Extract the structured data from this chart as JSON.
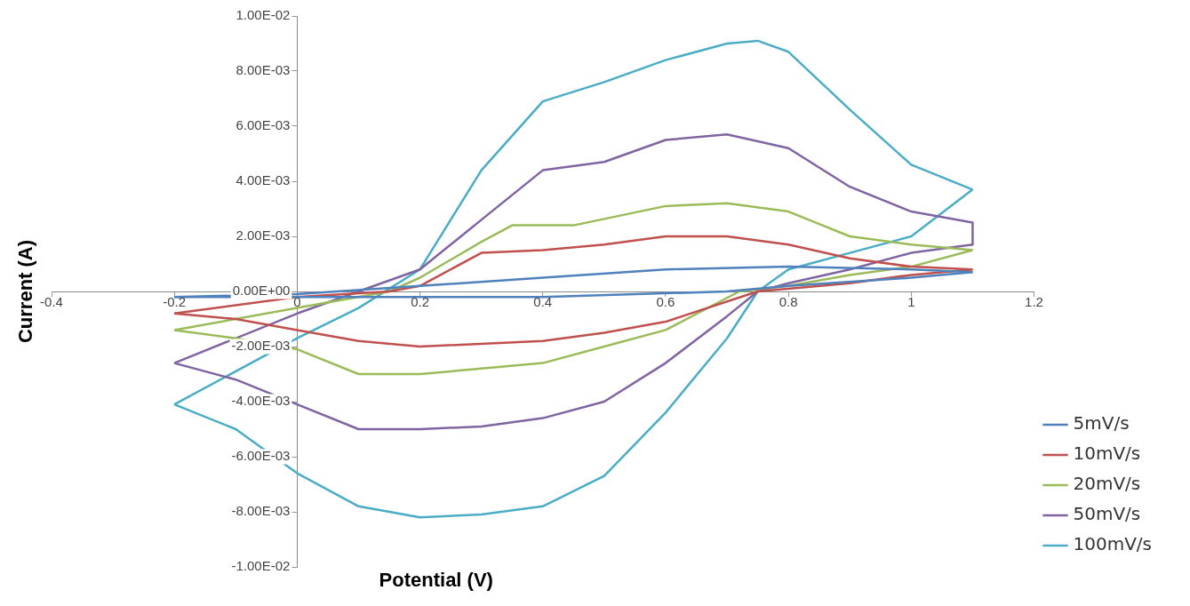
{
  "chart_data": {
    "type": "line",
    "xlabel": "Potential (V)",
    "ylabel": "Current (A)",
    "xlim": [
      -0.4,
      1.2
    ],
    "xticks": [
      -0.4,
      -0.2,
      0,
      0.2,
      0.4,
      0.6,
      0.8,
      1,
      1.2
    ],
    "ylim": [
      -0.01,
      0.01
    ],
    "yticks": [
      {
        "value": -0.01,
        "label": "-1.00E-02"
      },
      {
        "value": -0.008,
        "label": "-8.00E-03"
      },
      {
        "value": -0.006,
        "label": "-6.00E-03"
      },
      {
        "value": -0.004,
        "label": "-4.00E-03"
      },
      {
        "value": -0.002,
        "label": "-2.00E-03"
      },
      {
        "value": 0,
        "label": "0.00E+00"
      },
      {
        "value": 0.002,
        "label": "2.00E-03"
      },
      {
        "value": 0.004,
        "label": "4.00E-03"
      },
      {
        "value": 0.006,
        "label": "6.00E-03"
      },
      {
        "value": 0.008,
        "label": "8.00E-03"
      },
      {
        "value": 0.01,
        "label": "1.00E-02"
      }
    ],
    "grid": false,
    "legend": "bottom right",
    "marker": "none",
    "line_style": "solid",
    "series": [
      {
        "name": "5mV/s",
        "color": "#4f81bd",
        "x": [
          -0.2,
          0,
          0.2,
          0.4,
          0.6,
          0.8,
          1.0,
          1.1,
          1.0,
          0.8,
          0.7,
          0.4,
          0.2,
          0,
          -0.2
        ],
        "values": [
          -0.0002,
          -0.0001,
          0.0002,
          0.0005,
          0.0008,
          0.0009,
          0.0008,
          0.0007,
          0.0005,
          0.0002,
          0,
          -0.0002,
          -0.0002,
          -0.0002,
          -0.0002
        ]
      },
      {
        "name": "10mV/s",
        "color": "#c0504d",
        "x": [
          -0.2,
          0,
          0.15,
          0.2,
          0.3,
          0.4,
          0.5,
          0.6,
          0.7,
          0.8,
          0.9,
          1.0,
          1.1,
          1.0,
          0.9,
          0.75,
          0.6,
          0.5,
          0.4,
          0.2,
          0.1,
          0,
          -0.1,
          -0.2
        ],
        "values": [
          -0.0008,
          -0.0002,
          0,
          0.0002,
          0.0014,
          0.0015,
          0.0017,
          0.002,
          0.002,
          0.0017,
          0.0012,
          0.0009,
          0.0008,
          0.0006,
          0.0003,
          0,
          -0.0011,
          -0.0015,
          -0.0018,
          -0.002,
          -0.0018,
          -0.0014,
          -0.001,
          -0.0008
        ]
      },
      {
        "name": "20mV/s",
        "color": "#9bbb59",
        "x": [
          -0.2,
          0,
          0.15,
          0.2,
          0.3,
          0.35,
          0.45,
          0.6,
          0.7,
          0.8,
          0.9,
          1.0,
          1.1,
          1.0,
          0.9,
          0.8,
          0.72,
          0.6,
          0.5,
          0.4,
          0.3,
          0.2,
          0.1,
          0,
          -0.1,
          -0.2
        ],
        "values": [
          -0.0014,
          -0.0006,
          0,
          0.0005,
          0.0018,
          0.0024,
          0.0024,
          0.0031,
          0.0032,
          0.0029,
          0.002,
          0.0017,
          0.0015,
          0.0009,
          0.0006,
          0.0002,
          0,
          -0.0014,
          -0.002,
          -0.0026,
          -0.0028,
          -0.003,
          -0.003,
          -0.0021,
          -0.0017,
          -0.0014
        ]
      },
      {
        "name": "50mV/s",
        "color": "#8064a2",
        "x": [
          -0.2,
          0,
          0.1,
          0.2,
          0.3,
          0.4,
          0.5,
          0.6,
          0.7,
          0.8,
          0.9,
          1.0,
          1.1,
          1.1,
          1.0,
          0.9,
          0.8,
          0.75,
          0.7,
          0.6,
          0.5,
          0.4,
          0.3,
          0.2,
          0.1,
          0,
          -0.1,
          -0.2
        ],
        "values": [
          -0.0026,
          -0.0008,
          0,
          0.0008,
          0.0026,
          0.0044,
          0.0047,
          0.0055,
          0.0057,
          0.0052,
          0.0038,
          0.0029,
          0.0025,
          0.0017,
          0.0014,
          0.0008,
          0.0003,
          0,
          -0.0009,
          -0.0026,
          -0.004,
          -0.0046,
          -0.0049,
          -0.005,
          -0.005,
          -0.0041,
          -0.0032,
          -0.0026
        ]
      },
      {
        "name": "100mV/s",
        "color": "#4bacc6",
        "x": [
          -0.2,
          0,
          0.1,
          0.2,
          0.3,
          0.4,
          0.5,
          0.6,
          0.7,
          0.75,
          0.8,
          0.9,
          1.0,
          1.1,
          1.1,
          1.0,
          0.9,
          0.8,
          0.75,
          0.7,
          0.6,
          0.5,
          0.4,
          0.3,
          0.2,
          0.1,
          0,
          -0.1,
          -0.2
        ],
        "values": [
          -0.0041,
          -0.0017,
          -0.0006,
          0.0008,
          0.0044,
          0.0069,
          0.0076,
          0.0084,
          0.009,
          0.0091,
          0.0087,
          0.0066,
          0.0046,
          0.0037,
          0.0037,
          0.002,
          0.0014,
          0.0008,
          0,
          -0.0017,
          -0.0044,
          -0.0067,
          -0.0078,
          -0.0081,
          -0.0082,
          -0.0078,
          -0.0066,
          -0.005,
          -0.0041
        ]
      }
    ]
  }
}
